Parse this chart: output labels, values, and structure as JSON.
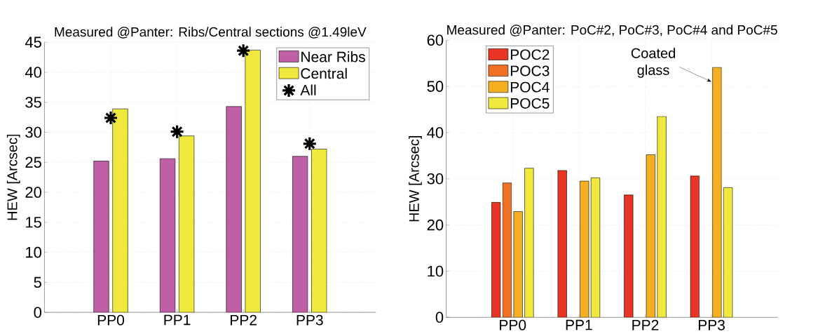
{
  "chart_data": [
    {
      "type": "bar",
      "title": "Measured @Panter: Ribs/Central sections @1.49leV",
      "ylabel": "HEW [Arcsec]",
      "categories": [
        "PP0",
        "PP1",
        "PP2",
        "PP3"
      ],
      "series": [
        {
          "name": "Near Ribs",
          "color": "#bf5fa5",
          "values": [
            25.2,
            25.6,
            34.3,
            26.0
          ]
        },
        {
          "name": "Central",
          "color": "#f0e83c",
          "values": [
            33.9,
            29.4,
            43.7,
            27.2
          ]
        },
        {
          "name": "All",
          "type": "scatter",
          "marker": "cross",
          "color": "#000000",
          "x": [
            "PP0",
            "PP1",
            "PP2",
            "PP3"
          ],
          "values": [
            32.4,
            30.1,
            43.6,
            28.1
          ]
        }
      ],
      "ylim": [
        0,
        45
      ],
      "yticks": [
        0,
        5,
        10,
        15,
        20,
        25,
        30,
        35,
        40,
        45
      ],
      "grid": true,
      "legend": "top right"
    },
    {
      "type": "bar",
      "title": "Measured @Panter: PoC#2, PoC#3, PoC#4 and PoC#5",
      "ylabel": "HEW [Arcsec]",
      "categories": [
        "PP0",
        "PP1",
        "PP2",
        "PP3"
      ],
      "series": [
        {
          "name": "POC2",
          "color": "#e83424",
          "values": [
            24.9,
            31.8,
            26.5,
            30.6
          ]
        },
        {
          "name": "POC3",
          "color": "#f07024",
          "values": [
            29.1,
            null,
            null,
            null
          ]
        },
        {
          "name": "POC4",
          "color": "#f4b020",
          "values": [
            22.9,
            29.5,
            35.2,
            54.1
          ]
        },
        {
          "name": "POC5",
          "color": "#f0e83c",
          "values": [
            32.3,
            30.2,
            43.5,
            28.1
          ]
        }
      ],
      "ylim": [
        0,
        60
      ],
      "yticks": [
        0,
        10,
        20,
        30,
        40,
        50,
        60
      ],
      "grid": true,
      "legend": "top left",
      "annotations": [
        {
          "text": "Coated glass",
          "x": "PP3",
          "y": 51
        }
      ]
    }
  ]
}
